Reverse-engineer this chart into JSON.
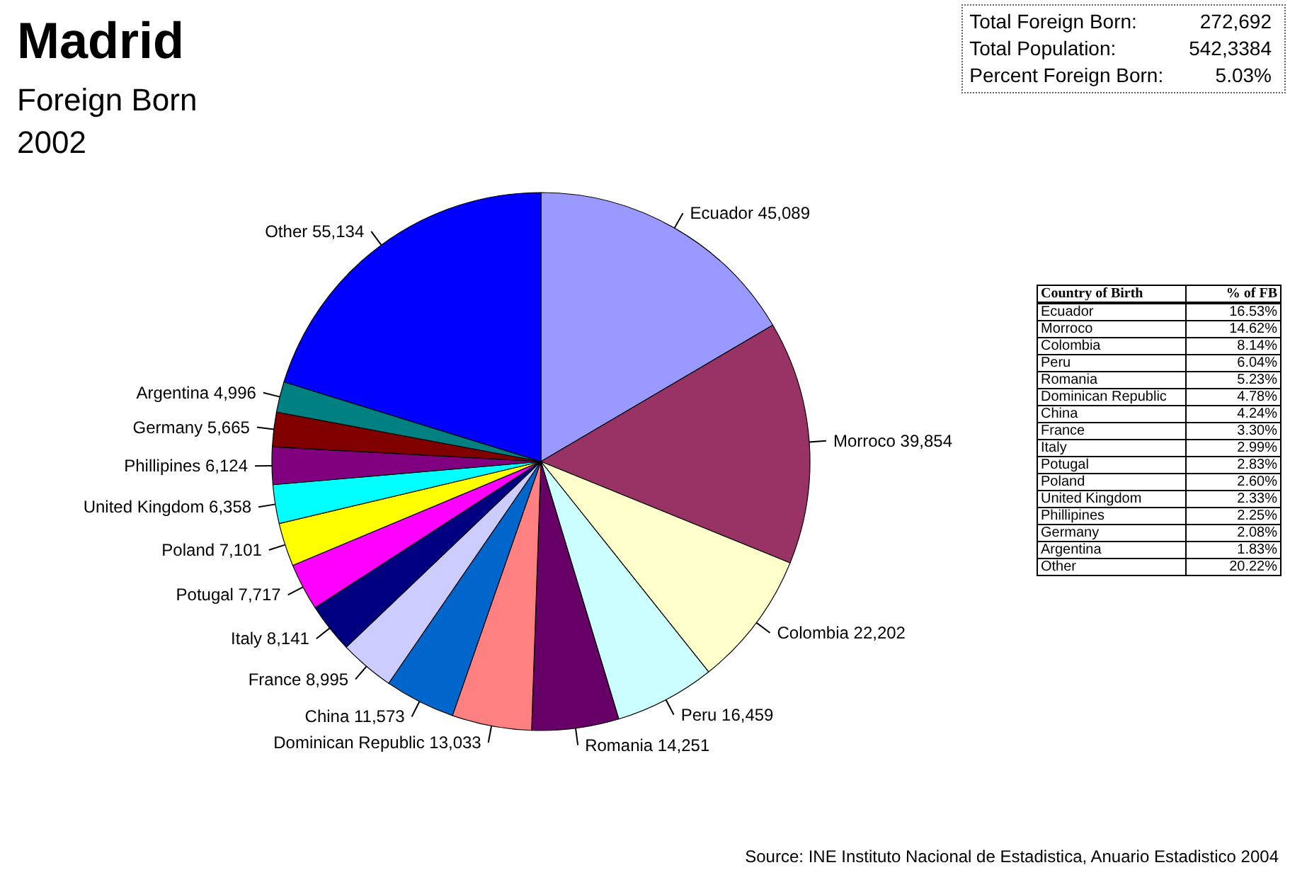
{
  "chart_data": {
    "type": "pie",
    "title": "Madrid",
    "subtitle": "Foreign Born\n2002",
    "categories": [
      "Ecuador",
      "Morroco",
      "Colombia",
      "Peru",
      "Romania",
      "Dominican Republic",
      "China",
      "France",
      "Italy",
      "Potugal",
      "Poland",
      "United Kingdom",
      "Phillipines",
      "Germany",
      "Argentina",
      "Other"
    ],
    "values": [
      45089,
      39854,
      22202,
      16459,
      14251,
      13033,
      11573,
      8995,
      8141,
      7717,
      7101,
      6358,
      6124,
      5665,
      4996,
      55134
    ],
    "value_labels": [
      "45,089",
      "39,854",
      "22,202",
      "16,459",
      "14,251",
      "13,033",
      "11,573",
      "8,995",
      "8,141",
      "7,717",
      "7,101",
      "6,358",
      "6,124",
      "5,665",
      "4,996",
      "55,134"
    ],
    "colors": [
      "#9999ff",
      "#993366",
      "#ffffcc",
      "#ccffff",
      "#660066",
      "#ff8080",
      "#0066cc",
      "#ccccff",
      "#000080",
      "#ff00ff",
      "#ffff00",
      "#00ffff",
      "#800080",
      "#800000",
      "#008080",
      "#0000ff"
    ],
    "annotations": [
      "Total Foreign Born:",
      "272,692",
      "Total Population:",
      "542,3384",
      "Percent Foreign Born:",
      "5.03%",
      "Country of Birth",
      "% of FB",
      "Ecuador",
      "16.53%",
      "Morroco",
      "14.62%",
      "Colombia",
      "8.14%",
      "Peru",
      "6.04%",
      "Romania",
      "5.23%",
      "Dominican Republic",
      "4.78%",
      "China",
      "4.24%",
      "France",
      "3.30%",
      "Italy",
      "2.99%",
      "Potugal",
      "2.83%",
      "Poland",
      "2.60%",
      "United Kingdom",
      "2.33%",
      "Phillipines",
      "2.25%",
      "Germany",
      "2.08%",
      "Argentina",
      "1.83%",
      "Other",
      "20.22%",
      "Source: INE Instituto Nacional de Estadistica, Anuario Estadistico 2004"
    ],
    "legend": false
  }
}
